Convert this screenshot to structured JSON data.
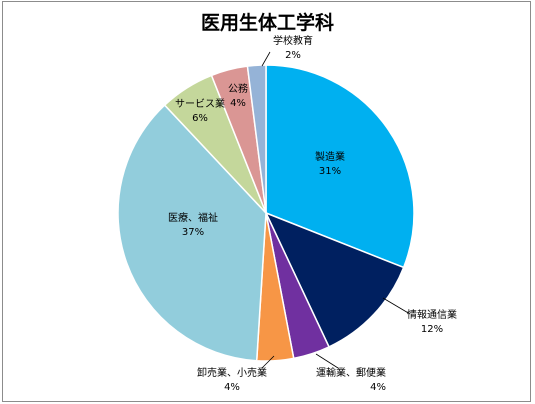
{
  "chart_data": {
    "type": "pie",
    "title": "医用生体工学科",
    "slices": [
      {
        "label": "製造業",
        "value": 31,
        "value_text": "31%",
        "color": "#00b0f0"
      },
      {
        "label": "情報通信業",
        "value": 12,
        "value_text": "12%",
        "color": "#002060"
      },
      {
        "label": "運輸業、郵便業",
        "value": 4,
        "value_text": "4%",
        "color": "#7030a0"
      },
      {
        "label": "卸売業、小売業",
        "value": 4,
        "value_text": "4%",
        "color": "#f79646"
      },
      {
        "label": "医療、福祉",
        "value": 37,
        "value_text": "37%",
        "color": "#92cddc"
      },
      {
        "label": "サービス業",
        "value": 6,
        "value_text": "6%",
        "color": "#c4d79b"
      },
      {
        "label": "公務",
        "value": 4,
        "value_text": "4%",
        "color": "#da9694"
      },
      {
        "label": "学校教育",
        "value": 2,
        "value_text": "2%",
        "color": "#95b3d7"
      }
    ]
  }
}
